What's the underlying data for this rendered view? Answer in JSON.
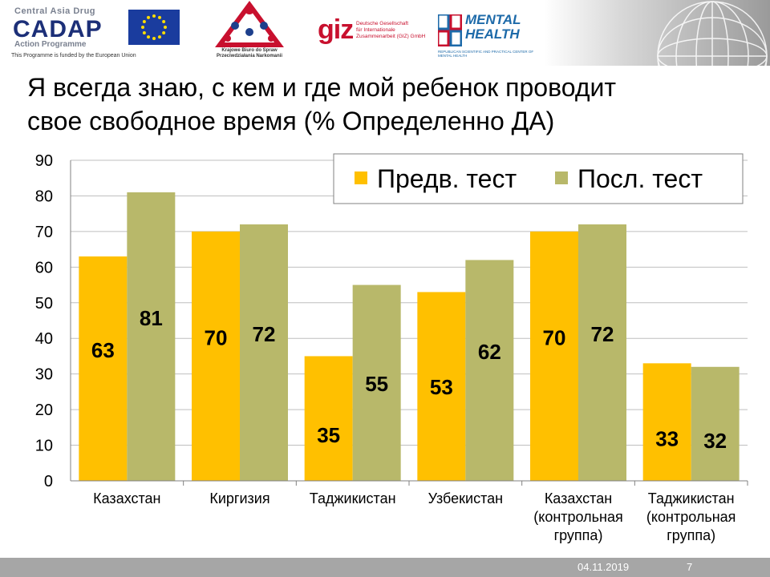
{
  "logos": {
    "cadap_line1": "Central Asia Drug",
    "cadap_name": "CADAP",
    "cadap_line2": "Action Programme",
    "cadap_funded": "This Programme is funded by the European Union",
    "kbpn_line1": "Krajowe Biuro do Spraw",
    "kbpn_line2": "Przeciwdziałania Narkomanii",
    "giz_mark": "giz",
    "giz_line1": "Deutsche Gesellschaft",
    "giz_line2": "für Internationale",
    "giz_line3": "Zusammenarbeit (GIZ) GmbH",
    "rspc_line1": "MENTAL",
    "rspc_line2": "HEALTH",
    "rspc_sub": "REPUBLICAN SCIENTIFIC AND PRACTICAL CENTER OF MENTAL HEALTH"
  },
  "colors": {
    "pre": "#FFC000",
    "post": "#B8B86A",
    "grid": "#BFBFBF",
    "eu_blue": "#1A3C9E",
    "eu_star": "#FFDD00",
    "giz_red": "#C8102E",
    "rspc_blue": "#1D6AA9",
    "cadap_blue": "#1C2F78",
    "footer_bar": "#A6A6A6"
  },
  "chart_data": {
    "type": "bar",
    "title": "Я всегда знаю, с кем и где мой ребенок проводит свое свободное время (% Определенно ДА)",
    "categories": [
      [
        "Казахстан"
      ],
      [
        "Киргизия"
      ],
      [
        "Таджикистан"
      ],
      [
        "Узбекистан"
      ],
      [
        "Казахстан",
        "(контрольная",
        "группа)"
      ],
      [
        "Таджикистан",
        "(контрольная",
        "группа)"
      ]
    ],
    "series": [
      {
        "name": "Предв. тест",
        "color": "#FFC000",
        "values": [
          63,
          70,
          35,
          53,
          70,
          33
        ]
      },
      {
        "name": "Посл. тест",
        "color": "#B8B86A",
        "values": [
          81,
          72,
          55,
          62,
          72,
          32
        ]
      }
    ],
    "ylim": [
      0,
      90
    ],
    "yticks": [
      0,
      10,
      20,
      30,
      40,
      50,
      60,
      70,
      80,
      90
    ],
    "grid": true,
    "legend_position": "top-right"
  },
  "footer": {
    "date": "04.11.2019",
    "page": "7"
  }
}
